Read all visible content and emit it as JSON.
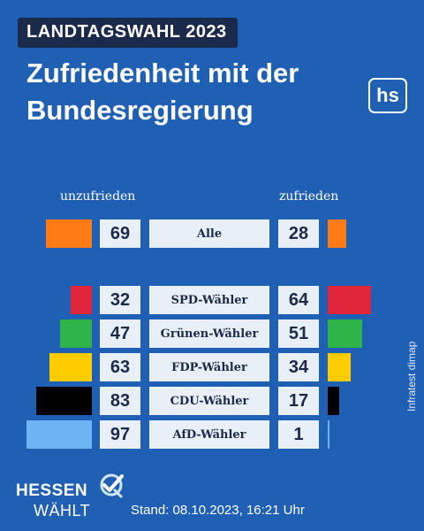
{
  "header": {
    "kicker": "LANDTAGSWAHL 2023",
    "title_line1": "Zufriedenheit mit der",
    "title_line2": "Bundesregierung",
    "logo_text": "hs"
  },
  "chart_data": {
    "type": "bar",
    "layout": "diverging",
    "left_label": "unzufrieden",
    "right_label": "zufrieden",
    "categories": [
      "Alle",
      "SPD-Wähler",
      "Grünen-Wähler",
      "FDP-Wähler",
      "CDU-Wähler",
      "AfD-Wähler"
    ],
    "series": [
      {
        "name": "unzufrieden",
        "values": [
          69,
          32,
          47,
          63,
          83,
          97
        ]
      },
      {
        "name": "zufrieden",
        "values": [
          28,
          64,
          51,
          34,
          17,
          1
        ]
      }
    ],
    "colors": [
      "#ff7b16",
      "#e0243a",
      "#2fb44a",
      "#ffcc00",
      "#000000",
      "#6cb4f2"
    ]
  },
  "source": "Infratest dimap",
  "footer": {
    "brand_top": "HESSEN",
    "brand_bottom": "WÄHLT",
    "stand": "Stand: 08.10.2023, 16:21 Uhr"
  }
}
